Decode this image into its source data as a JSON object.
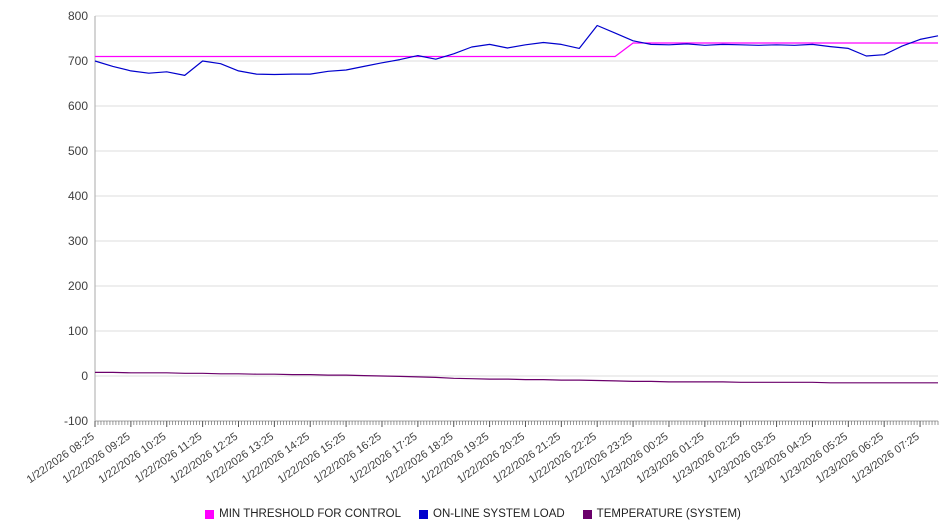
{
  "chart_data": {
    "type": "line",
    "title": "",
    "xlabel": "",
    "ylabel": "",
    "ylim": [
      -100,
      800
    ],
    "y_tick_step": 100,
    "y_tick_labels": [
      "-100",
      "0",
      "100",
      "200",
      "300",
      "400",
      "500",
      "600",
      "700",
      "800"
    ],
    "grid": "horizontal",
    "legend_position": "bottom",
    "x_step_hours": 0.5,
    "x_span_hours": 23.5,
    "x_tick_labels": [
      "1/22/2026 08:25",
      "1/22/2026 09:25",
      "1/22/2026 10:25",
      "1/22/2026 11:25",
      "1/22/2026 12:25",
      "1/22/2026 13:25",
      "1/22/2026 14:25",
      "1/22/2026 15:25",
      "1/22/2026 16:25",
      "1/22/2026 17:25",
      "1/22/2026 18:25",
      "1/22/2026 19:25",
      "1/22/2026 20:25",
      "1/22/2026 21:25",
      "1/22/2026 22:25",
      "1/22/2026 23:25",
      "1/23/2026 00:25",
      "1/23/2026 01:25",
      "1/23/2026 02:25",
      "1/23/2026 03:25",
      "1/23/2026 04:25",
      "1/23/2026 05:25",
      "1/23/2026 06:25",
      "1/23/2026 07:25"
    ],
    "series": [
      {
        "name": "MIN THRESHOLD FOR CONTROL",
        "color": "#ff00ff",
        "values": [
          710,
          710,
          710,
          710,
          710,
          710,
          710,
          710,
          710,
          710,
          710,
          710,
          710,
          710,
          710,
          710,
          710,
          710,
          710,
          710,
          710,
          710,
          710,
          710,
          710,
          710,
          710,
          710,
          710,
          710,
          740,
          740,
          740,
          740,
          740,
          740,
          740,
          740,
          740,
          740,
          740,
          740,
          740,
          740,
          740,
          740,
          740,
          740
        ]
      },
      {
        "name": "ON-LINE SYSTEM LOAD",
        "color": "#0000cd",
        "values": [
          700,
          688,
          678,
          673,
          676,
          668,
          700,
          694,
          678,
          671,
          670,
          671,
          671,
          677,
          680,
          688,
          696,
          703,
          712,
          704,
          716,
          731,
          737,
          729,
          736,
          741,
          737,
          728,
          779,
          762,
          745,
          737,
          736,
          738,
          735,
          737,
          736,
          735,
          736,
          735,
          737,
          732,
          728,
          711,
          714,
          733,
          748,
          756
        ]
      },
      {
        "name": "TEMPERATURE (SYSTEM)",
        "color": "#6b006b",
        "values": [
          8,
          8,
          7,
          7,
          7,
          6,
          6,
          5,
          5,
          4,
          4,
          3,
          3,
          2,
          2,
          1,
          0,
          -1,
          -2,
          -3,
          -5,
          -6,
          -7,
          -7,
          -8,
          -8,
          -9,
          -9,
          -10,
          -11,
          -12,
          -12,
          -13,
          -13,
          -13,
          -13,
          -14,
          -14,
          -14,
          -14,
          -14,
          -15,
          -15,
          -15,
          -15,
          -15,
          -15,
          -15
        ]
      }
    ],
    "colors": {
      "grid": "#dddddd",
      "axis": "#aaaaaa",
      "tick": "#555555",
      "tick_label": "#404040",
      "background": "#ffffff"
    }
  }
}
